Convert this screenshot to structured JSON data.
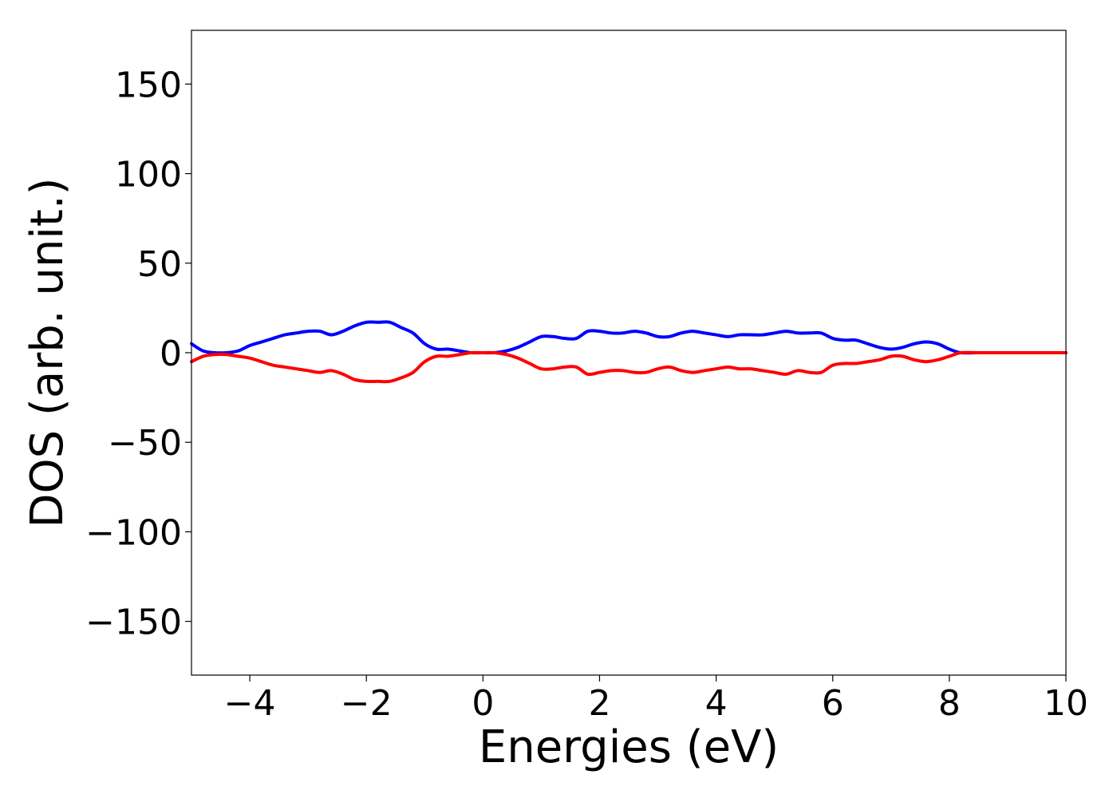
{
  "chart_data": {
    "type": "line",
    "title": "",
    "xlabel": "Energies (eV)",
    "ylabel": "DOS (arb. unit.)",
    "xlim": [
      -5,
      10
    ],
    "ylim": [
      -180,
      180
    ],
    "xticks": [
      -4,
      -2,
      0,
      2,
      4,
      6,
      8,
      10
    ],
    "xtick_labels": [
      "−4",
      "−2",
      "0",
      "2",
      "4",
      "6",
      "8",
      "10"
    ],
    "yticks": [
      -150,
      -100,
      -50,
      0,
      50,
      100,
      150
    ],
    "ytick_labels": [
      "−150",
      "−100",
      "−50",
      "0",
      "50",
      "100",
      "150"
    ],
    "grid": false,
    "legend": "none",
    "series": [
      {
        "color": "#0000ff",
        "x": [
          -5.0,
          -4.8,
          -4.6,
          -4.4,
          -4.2,
          -4.0,
          -3.8,
          -3.6,
          -3.4,
          -3.2,
          -3.0,
          -2.8,
          -2.6,
          -2.4,
          -2.2,
          -2.0,
          -1.8,
          -1.6,
          -1.4,
          -1.2,
          -1.0,
          -0.8,
          -0.6,
          -0.4,
          -0.2,
          0.0,
          0.2,
          0.4,
          0.6,
          0.8,
          1.0,
          1.2,
          1.4,
          1.6,
          1.8,
          2.0,
          2.2,
          2.4,
          2.6,
          2.8,
          3.0,
          3.2,
          3.4,
          3.6,
          3.8,
          4.0,
          4.2,
          4.4,
          4.6,
          4.8,
          5.0,
          5.2,
          5.4,
          5.6,
          5.8,
          6.0,
          6.2,
          6.4,
          6.6,
          6.8,
          7.0,
          7.2,
          7.4,
          7.6,
          7.8,
          8.0,
          8.2,
          8.5,
          9.0,
          9.5,
          10.0
        ],
        "y": [
          5,
          1,
          0,
          0,
          1,
          4,
          6,
          8,
          10,
          11,
          12,
          12,
          10,
          12,
          15,
          17,
          17,
          17,
          14,
          11,
          5,
          2,
          2,
          1,
          0,
          0,
          0,
          1,
          3,
          6,
          9,
          9,
          8,
          8,
          12,
          12,
          11,
          11,
          12,
          11,
          9,
          9,
          11,
          12,
          11,
          10,
          9,
          10,
          10,
          10,
          11,
          12,
          11,
          11,
          11,
          8,
          7,
          7,
          5,
          3,
          2,
          3,
          5,
          6,
          5,
          2,
          0,
          0,
          0,
          0,
          0
        ]
      },
      {
        "color": "#ff0000",
        "x": [
          -5.0,
          -4.8,
          -4.6,
          -4.4,
          -4.2,
          -4.0,
          -3.8,
          -3.6,
          -3.4,
          -3.2,
          -3.0,
          -2.8,
          -2.6,
          -2.4,
          -2.2,
          -2.0,
          -1.8,
          -1.6,
          -1.4,
          -1.2,
          -1.0,
          -0.8,
          -0.6,
          -0.4,
          -0.2,
          0.0,
          0.2,
          0.4,
          0.6,
          0.8,
          1.0,
          1.2,
          1.4,
          1.6,
          1.8,
          2.0,
          2.2,
          2.4,
          2.6,
          2.8,
          3.0,
          3.2,
          3.4,
          3.6,
          3.8,
          4.0,
          4.2,
          4.4,
          4.6,
          4.8,
          5.0,
          5.2,
          5.4,
          5.6,
          5.8,
          6.0,
          6.2,
          6.4,
          6.6,
          6.8,
          7.0,
          7.2,
          7.4,
          7.6,
          7.8,
          8.0,
          8.2,
          8.5,
          9.0,
          9.5,
          10.0
        ],
        "y": [
          -5,
          -2,
          -1,
          -1,
          -2,
          -3,
          -5,
          -7,
          -8,
          -9,
          -10,
          -11,
          -10,
          -12,
          -15,
          -16,
          -16,
          -16,
          -14,
          -11,
          -5,
          -2,
          -2,
          -1,
          0,
          0,
          0,
          -1,
          -3,
          -6,
          -9,
          -9,
          -8,
          -8,
          -12,
          -11,
          -10,
          -10,
          -11,
          -11,
          -9,
          -8,
          -10,
          -11,
          -10,
          -9,
          -8,
          -9,
          -9,
          -10,
          -11,
          -12,
          -10,
          -11,
          -11,
          -7,
          -6,
          -6,
          -5,
          -4,
          -2,
          -2,
          -4,
          -5,
          -4,
          -2,
          0,
          0,
          0,
          0,
          0
        ]
      }
    ]
  }
}
